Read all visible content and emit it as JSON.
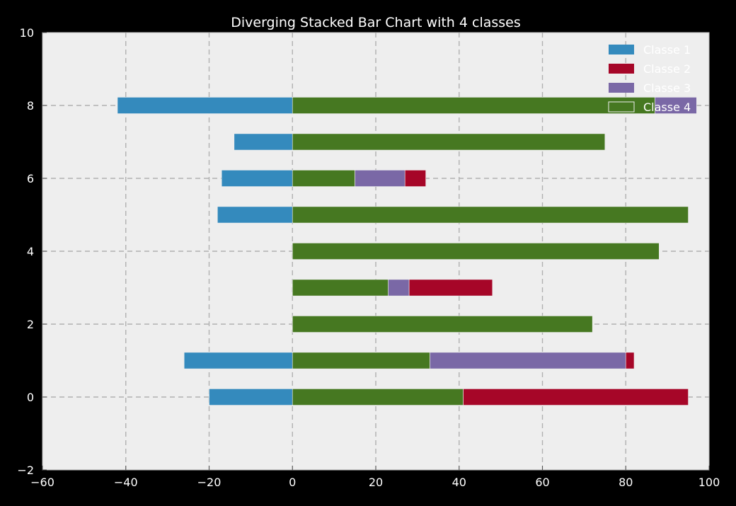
{
  "chart_data": {
    "type": "bar",
    "orientation": "horizontal",
    "stacking": "diverging",
    "title": "Diverging Stacked Bar Chart with 4 classes",
    "xlabel": "",
    "ylabel": "",
    "xlim": [
      -60,
      100
    ],
    "ylim": [
      -2,
      10
    ],
    "x_ticks": [
      -60,
      -40,
      -20,
      0,
      20,
      40,
      60,
      80,
      100
    ],
    "y_ticks": [
      -2,
      0,
      2,
      4,
      6,
      8,
      10
    ],
    "x_tick_labels": [
      "−60",
      "−40",
      "−20",
      "0",
      "20",
      "40",
      "60",
      "80",
      "100"
    ],
    "y_tick_labels": [
      "−2",
      "0",
      "2",
      "4",
      "6",
      "8",
      "10"
    ],
    "grid": true,
    "legend_position": "top-right",
    "categories": [
      0,
      1,
      2,
      3,
      4,
      5,
      6,
      7,
      8
    ],
    "series": [
      {
        "name": "Classe 1",
        "color": "#348ABD",
        "values": [
          -20,
          -26,
          0,
          0,
          0,
          -18,
          -17,
          -14,
          -42
        ]
      },
      {
        "name": "Classe 4",
        "color": "#467821",
        "values": [
          41,
          33,
          72,
          23,
          88,
          95,
          15,
          75,
          87
        ]
      },
      {
        "name": "Classe 3",
        "color": "#7A68A6",
        "values": [
          0,
          47,
          0,
          5,
          0,
          0,
          12,
          0,
          10
        ]
      },
      {
        "name": "Classe 2",
        "color": "#A60628",
        "values": [
          54,
          2,
          0,
          20,
          0,
          0,
          5,
          0,
          0
        ]
      }
    ],
    "legend": [
      {
        "name": "Classe 1",
        "color": "#348ABD"
      },
      {
        "name": "Classe 2",
        "color": "#A60628"
      },
      {
        "name": "Classe 3",
        "color": "#7A68A6"
      },
      {
        "name": "Classe 4",
        "color": "#467821"
      }
    ],
    "colors": {
      "background": "#000000",
      "plot_area": "#EEEEEE",
      "grid": "#B0B0B0",
      "text": "#FFFFFF"
    }
  }
}
